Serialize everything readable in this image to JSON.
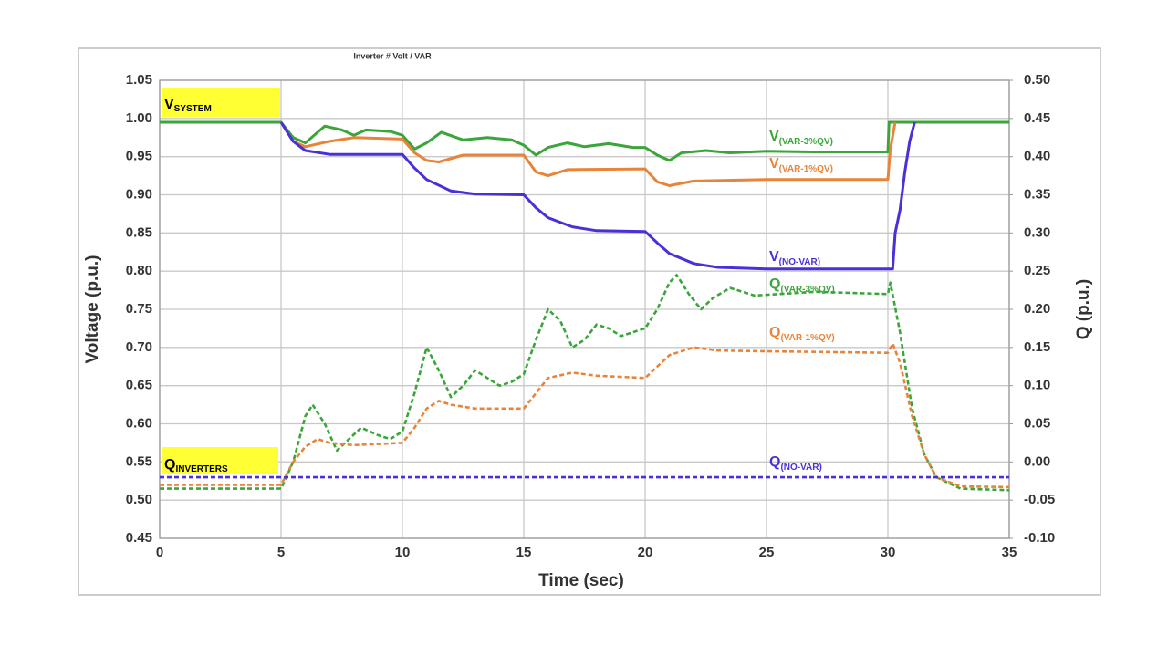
{
  "chart_data": {
    "type": "line",
    "title": "Inverter # Volt / VAR",
    "xlabel": "Time (sec)",
    "ylabel": "Voltage (p.u.)",
    "y2label": "Q (p.u.)",
    "xlim": [
      0,
      35
    ],
    "xticks": [
      0,
      5,
      10,
      15,
      20,
      25,
      30,
      35
    ],
    "ylim": [
      0.45,
      1.05
    ],
    "yticks": [
      0.45,
      {
        "value": 0.5,
        "label": "0.50"
      },
      0.55,
      {
        "value": 0.6,
        "label": "0.60"
      },
      0.65,
      {
        "value": 0.7,
        "label": "0.70"
      },
      0.75,
      {
        "value": 0.8,
        "label": "0.80"
      },
      0.85,
      {
        "value": 0.9,
        "label": "0.90"
      },
      0.95,
      {
        "value": 1.0,
        "label": "1.00"
      },
      1.05
    ],
    "y2lim": [
      -0.1,
      0.5
    ],
    "y2ticks": [
      {
        "value": -0.1,
        "label": "-0.10"
      },
      -0.05,
      {
        "value": 0,
        "label": "0.00"
      },
      0.05,
      {
        "value": 0.1,
        "label": "0.10"
      },
      0.15,
      {
        "value": 0.2,
        "label": "0.20"
      },
      0.25,
      {
        "value": 0.3,
        "label": "0.30"
      },
      0.35,
      {
        "value": 0.4,
        "label": "0.40"
      },
      0.45,
      {
        "value": 0.5,
        "label": "0.50"
      }
    ],
    "grid": true,
    "annotations": [
      {
        "text": "V",
        "subscript": "SYSTEM",
        "background": "#ffff33"
      },
      {
        "text": "Q",
        "subscript": "INVERTERS",
        "background": "#ffff33"
      }
    ],
    "series": [
      {
        "name": "V",
        "subscript": "(VAR-3%QV)",
        "color": "#3aa63a",
        "axis": "y",
        "dashed": false,
        "x": [
          0,
          5,
          5.5,
          6,
          6.8,
          7.5,
          8,
          8.5,
          9.5,
          10,
          10.5,
          11,
          11.6,
          12.5,
          13.5,
          14.5,
          15,
          15.5,
          16,
          16.8,
          17.5,
          18.5,
          19.5,
          20,
          20.5,
          21,
          21.5,
          22.5,
          23.5,
          25,
          27,
          30,
          30.05,
          35
        ],
        "values": [
          0.995,
          0.995,
          0.975,
          0.968,
          0.99,
          0.985,
          0.978,
          0.985,
          0.983,
          0.978,
          0.96,
          0.968,
          0.982,
          0.972,
          0.975,
          0.972,
          0.965,
          0.952,
          0.962,
          0.968,
          0.963,
          0.967,
          0.962,
          0.962,
          0.952,
          0.945,
          0.955,
          0.958,
          0.955,
          0.957,
          0.956,
          0.956,
          0.995,
          0.995
        ]
      },
      {
        "name": "V",
        "subscript": "(VAR-1%QV)",
        "color": "#e8843a",
        "axis": "y",
        "dashed": false,
        "x": [
          5,
          5.5,
          6,
          7,
          8,
          10,
          10.5,
          11,
          11.5,
          12.5,
          15,
          15.5,
          16,
          16.8,
          20,
          20.5,
          21,
          22,
          25,
          30,
          30.1,
          30.3
        ],
        "values": [
          0.995,
          0.97,
          0.963,
          0.97,
          0.975,
          0.973,
          0.955,
          0.945,
          0.943,
          0.952,
          0.952,
          0.93,
          0.925,
          0.933,
          0.934,
          0.917,
          0.912,
          0.918,
          0.92,
          0.92,
          0.96,
          0.995
        ]
      },
      {
        "name": "V",
        "subscript": "(NO-VAR)",
        "color": "#4b2fd8",
        "axis": "y",
        "dashed": false,
        "x": [
          5,
          5.5,
          6,
          7,
          10,
          10.5,
          11,
          12,
          13,
          15,
          15.5,
          16,
          17,
          18,
          20,
          20.5,
          21,
          22,
          23,
          25,
          30.2,
          30.3,
          30.5,
          30.7,
          30.9,
          31.1
        ],
        "values": [
          0.995,
          0.97,
          0.958,
          0.953,
          0.953,
          0.935,
          0.92,
          0.905,
          0.901,
          0.9,
          0.883,
          0.87,
          0.858,
          0.853,
          0.852,
          0.837,
          0.823,
          0.81,
          0.805,
          0.803,
          0.803,
          0.85,
          0.88,
          0.93,
          0.97,
          0.995
        ]
      },
      {
        "name": "Q",
        "subscript": "(VAR-3%QV)",
        "color": "#3aa63a",
        "axis": "y2",
        "dashed": true,
        "x": [
          0,
          5,
          5.5,
          6,
          6.3,
          6.8,
          7.3,
          7.8,
          8.3,
          9,
          9.5,
          10,
          10.5,
          11,
          11.5,
          12,
          12.5,
          13,
          13.5,
          14,
          14.5,
          15,
          15.5,
          16,
          16.5,
          17,
          17.5,
          18,
          18.5,
          19,
          19.5,
          20,
          20.5,
          21,
          21.3,
          21.8,
          22.3,
          22.8,
          23.5,
          24.5,
          25.5,
          27,
          30,
          30.1,
          30.5,
          31,
          31.5,
          32,
          33,
          35
        ],
        "values": [
          -0.035,
          -0.035,
          0.0,
          0.06,
          0.075,
          0.05,
          0.015,
          0.03,
          0.045,
          0.035,
          0.03,
          0.04,
          0.09,
          0.15,
          0.12,
          0.085,
          0.1,
          0.12,
          0.11,
          0.1,
          0.105,
          0.115,
          0.16,
          0.2,
          0.185,
          0.15,
          0.16,
          0.18,
          0.175,
          0.165,
          0.17,
          0.175,
          0.2,
          0.235,
          0.245,
          0.22,
          0.2,
          0.215,
          0.228,
          0.218,
          0.22,
          0.223,
          0.22,
          0.235,
          0.17,
          0.07,
          0.01,
          -0.02,
          -0.035,
          -0.037
        ]
      },
      {
        "name": "Q",
        "subscript": "(VAR-1%QV)",
        "color": "#e8843a",
        "axis": "y2",
        "dashed": true,
        "x": [
          0,
          5,
          5.5,
          6,
          6.5,
          7,
          8,
          10,
          10.5,
          11,
          11.5,
          12,
          13,
          15,
          15.5,
          16,
          17,
          18,
          20,
          20.5,
          21,
          22,
          23,
          25,
          30,
          30.2,
          30.5,
          31,
          31.5,
          32,
          33,
          35
        ],
        "values": [
          -0.03,
          -0.03,
          0.0,
          0.02,
          0.03,
          0.025,
          0.022,
          0.025,
          0.045,
          0.07,
          0.08,
          0.075,
          0.07,
          0.07,
          0.09,
          0.11,
          0.117,
          0.113,
          0.11,
          0.125,
          0.14,
          0.15,
          0.146,
          0.145,
          0.143,
          0.155,
          0.13,
          0.06,
          0.01,
          -0.02,
          -0.032,
          -0.033
        ]
      },
      {
        "name": "Q",
        "subscript": "(NO-VAR)",
        "color": "#4b2fd8",
        "axis": "y2",
        "dashed": true,
        "x": [
          0,
          35
        ],
        "values": [
          -0.02,
          -0.02
        ]
      }
    ]
  }
}
